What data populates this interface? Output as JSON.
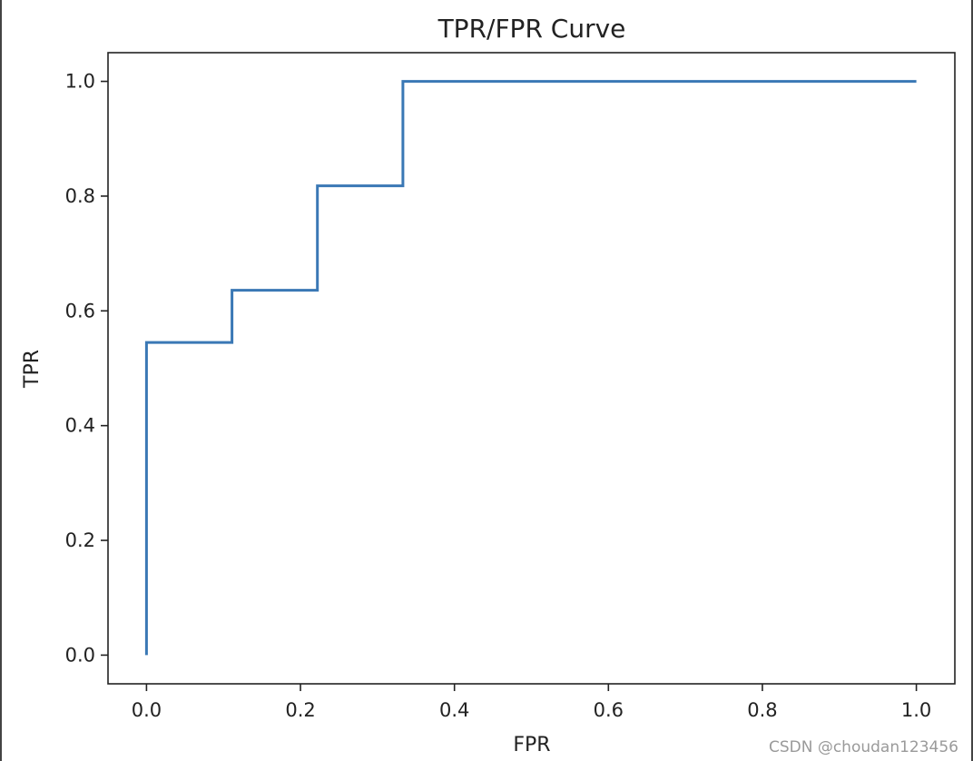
{
  "chart_data": {
    "type": "line",
    "title": "TPR/FPR Curve",
    "xlabel": "FPR",
    "ylabel": "TPR",
    "xlim": [
      -0.05,
      1.05
    ],
    "ylim": [
      -0.05,
      1.05
    ],
    "xticks": [
      0.0,
      0.2,
      0.4,
      0.6,
      0.8,
      1.0
    ],
    "xtick_labels": [
      "0.0",
      "0.2",
      "0.4",
      "0.6",
      "0.8",
      "1.0"
    ],
    "yticks": [
      0.0,
      0.2,
      0.4,
      0.6,
      0.8,
      1.0
    ],
    "ytick_labels": [
      "0.0",
      "0.2",
      "0.4",
      "0.6",
      "0.8",
      "1.0"
    ],
    "grid": false,
    "series": [
      {
        "color": "#3a78b5",
        "x": [
          0.0,
          0.0,
          0.111,
          0.111,
          0.222,
          0.222,
          0.333,
          0.333,
          1.0
        ],
        "y": [
          0.0,
          0.545,
          0.545,
          0.636,
          0.636,
          0.818,
          0.818,
          1.0,
          1.0
        ]
      }
    ]
  },
  "watermark": "CSDN @choudan123456"
}
